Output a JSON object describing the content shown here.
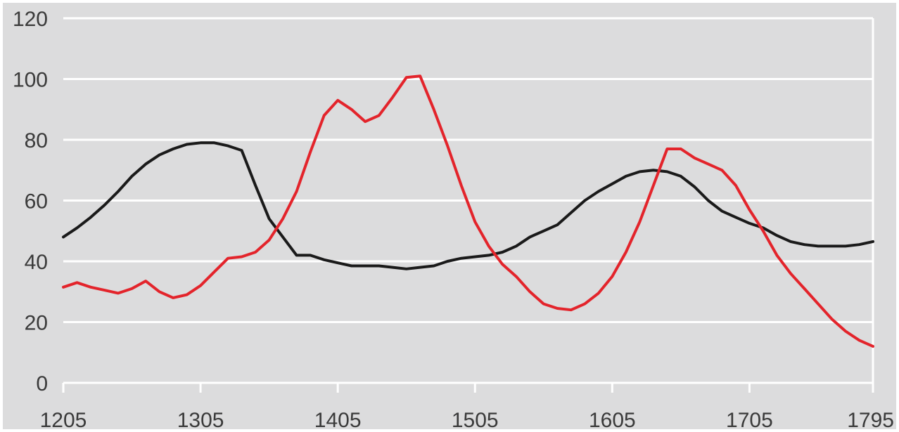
{
  "chart_data": {
    "type": "line",
    "xlim": [
      1205,
      1795
    ],
    "ylim": [
      0,
      120
    ],
    "x_ticks": [
      1205,
      1305,
      1405,
      1505,
      1605,
      1705,
      1795
    ],
    "y_ticks": [
      0,
      20,
      40,
      60,
      80,
      100,
      120
    ],
    "grid": "horizontal",
    "legend": "none",
    "background_color": "#dcdcdd",
    "grid_color": "#ffffff",
    "series": [
      {
        "color": "#1a1a1a",
        "x": [
          1205,
          1215,
          1225,
          1235,
          1245,
          1255,
          1265,
          1275,
          1285,
          1295,
          1305,
          1315,
          1325,
          1335,
          1345,
          1355,
          1365,
          1375,
          1385,
          1395,
          1405,
          1415,
          1425,
          1435,
          1445,
          1455,
          1465,
          1475,
          1485,
          1495,
          1505,
          1515,
          1525,
          1535,
          1545,
          1555,
          1565,
          1575,
          1585,
          1595,
          1605,
          1615,
          1625,
          1635,
          1645,
          1655,
          1665,
          1675,
          1685,
          1695,
          1705,
          1715,
          1725,
          1735,
          1745,
          1755,
          1765,
          1775,
          1785,
          1795
        ],
        "values": [
          48,
          51,
          54.5,
          58.5,
          63,
          68,
          72,
          75,
          77,
          78.5,
          79,
          79,
          78,
          76.5,
          65,
          54,
          48,
          42,
          42,
          40.5,
          39.5,
          38.5,
          38.5,
          38.5,
          38,
          37.5,
          38,
          38.5,
          40,
          41,
          41.5,
          42,
          43,
          45,
          48,
          50,
          52,
          56,
          60,
          63,
          65.5,
          68,
          69.5,
          70,
          69.5,
          68,
          64.5,
          60,
          56.5,
          54.5,
          52.5,
          51,
          48.5,
          46.5,
          45.5,
          45,
          45,
          45,
          45.5,
          46.5
        ]
      },
      {
        "color": "#e3242b",
        "x": [
          1205,
          1215,
          1225,
          1235,
          1245,
          1255,
          1265,
          1275,
          1285,
          1295,
          1305,
          1315,
          1325,
          1335,
          1345,
          1355,
          1365,
          1375,
          1385,
          1395,
          1405,
          1415,
          1425,
          1435,
          1445,
          1455,
          1465,
          1475,
          1485,
          1495,
          1505,
          1515,
          1525,
          1535,
          1545,
          1555,
          1565,
          1575,
          1585,
          1595,
          1605,
          1615,
          1625,
          1635,
          1645,
          1655,
          1665,
          1675,
          1685,
          1695,
          1705,
          1715,
          1725,
          1735,
          1745,
          1755,
          1765,
          1775,
          1785,
          1795
        ],
        "values": [
          31.5,
          33,
          31.5,
          30.5,
          29.5,
          31,
          33.5,
          30,
          28,
          29,
          32,
          36.5,
          41,
          41.5,
          43,
          47,
          54,
          63,
          76,
          88,
          93,
          90,
          86,
          88,
          94,
          100.5,
          101,
          90,
          78,
          65,
          53,
          45,
          39,
          35,
          30,
          26,
          24.5,
          24,
          26,
          29.5,
          35,
          43,
          53,
          65,
          77,
          77,
          74,
          72,
          70,
          65,
          57,
          50,
          42,
          36,
          31,
          26,
          21,
          17,
          14,
          12
        ]
      }
    ]
  }
}
